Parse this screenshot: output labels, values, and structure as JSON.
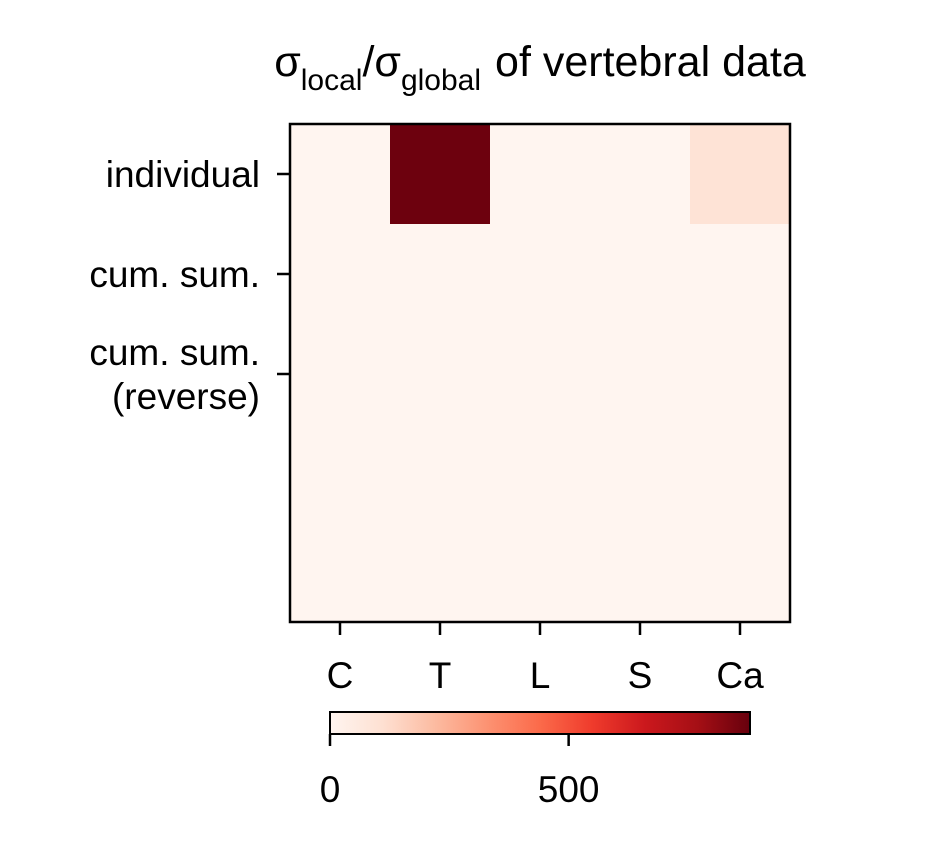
{
  "chart_data": {
    "type": "heatmap",
    "title": {
      "main": "of vertebral data",
      "numerator": "σ",
      "numerator_sub": "local",
      "slash": "/",
      "denominator": "σ",
      "denominator_sub": "global"
    },
    "x_categories": [
      "C",
      "T",
      "L",
      "S",
      "Ca"
    ],
    "y_categories": [
      "individual",
      "cum. sum.",
      "cum. sum. (reverse)"
    ],
    "y_tick_lines": [
      [
        "individual"
      ],
      [
        "cum. sum."
      ],
      [
        "cum. sum.",
        "(reverse)"
      ]
    ],
    "values": [
      [
        0,
        870,
        0,
        0,
        95
      ],
      [
        0,
        0,
        0,
        0,
        0
      ],
      [
        0,
        0,
        0,
        0,
        0
      ]
    ],
    "colormap": "Reds",
    "colormap_stops": [
      "#fff5f0",
      "#fee0d2",
      "#fcbba1",
      "#fc9272",
      "#fb6a4a",
      "#ef3b2c",
      "#cb181d",
      "#a50f15",
      "#67000d"
    ],
    "color_range": [
      0,
      880
    ],
    "colorbar": {
      "orientation": "horizontal",
      "ticks": [
        0,
        500
      ],
      "tick_labels": [
        "0",
        "500"
      ]
    }
  }
}
